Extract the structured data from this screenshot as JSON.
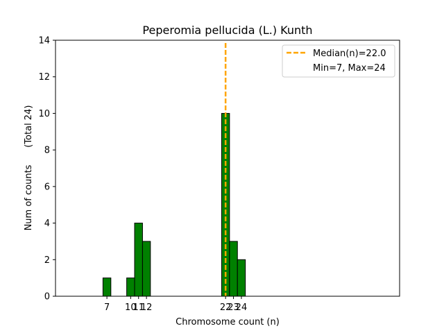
{
  "chart_data": {
    "type": "bar",
    "title": "Peperomia pellucida (L.) Kunth",
    "xlabel": "Chromosome count (n)",
    "ylabel": "Num of counts      (Total 24)",
    "xlim": [
      0.5,
      44
    ],
    "ylim": [
      0,
      14
    ],
    "yticks": [
      0,
      2,
      4,
      6,
      8,
      10,
      12,
      14
    ],
    "xticks": [
      7,
      10,
      11,
      12,
      22,
      23,
      24
    ],
    "bars": [
      {
        "x": 7,
        "count": 1
      },
      {
        "x": 10,
        "count": 1
      },
      {
        "x": 11,
        "count": 4
      },
      {
        "x": 12,
        "count": 3
      },
      {
        "x": 22,
        "count": 10
      },
      {
        "x": 23,
        "count": 3
      },
      {
        "x": 24,
        "count": 2
      }
    ],
    "baseline_range": [
      4,
      27.5
    ],
    "bar_color": "#008000",
    "median": 22.0,
    "median_color": "#ffa500",
    "legend": {
      "position": "top-right",
      "entries": [
        "Median(n)=22.0",
        "Min=7, Max=24"
      ]
    }
  }
}
